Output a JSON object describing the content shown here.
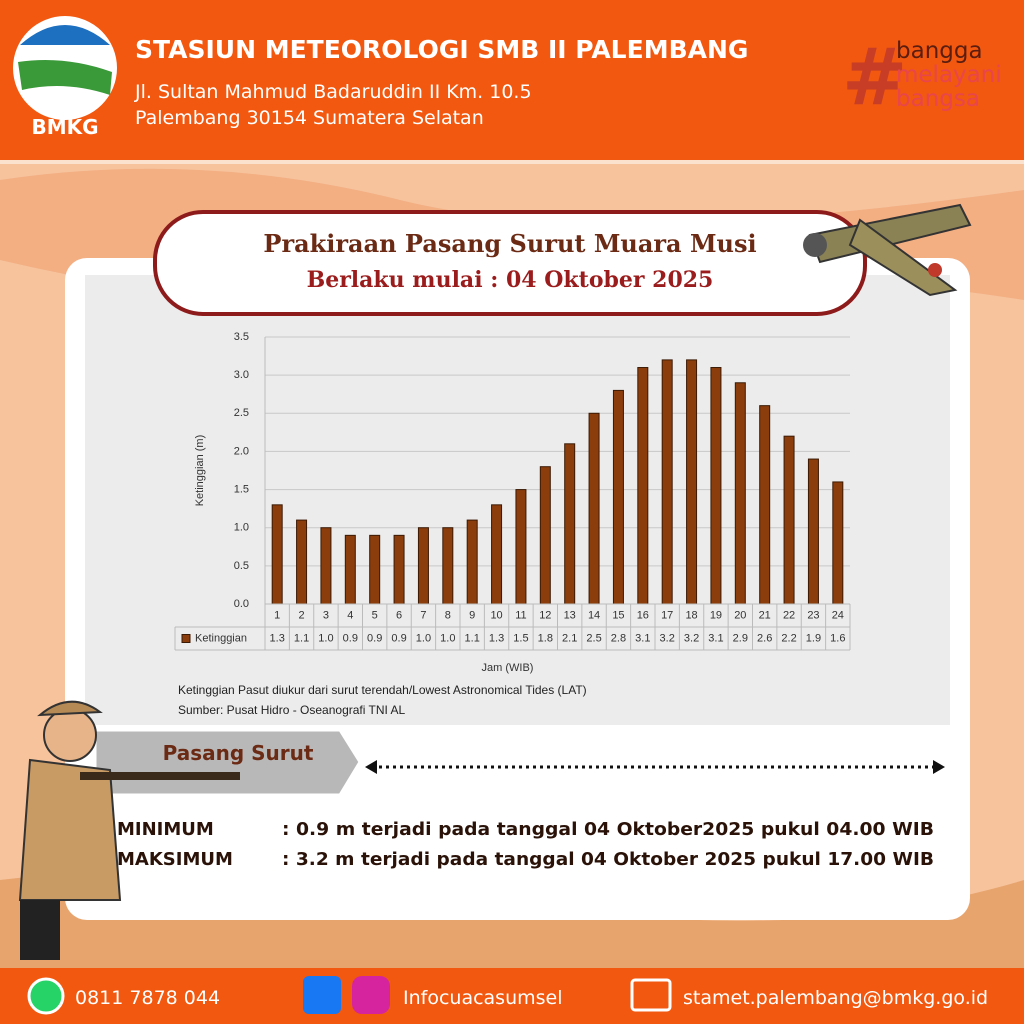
{
  "header": {
    "logo_text": "BMKG",
    "title": "STASIUN METEOROLOGI SMB II PALEMBANG",
    "address_line1": "Jl. Sultan Mahmud Badaruddin II Km. 10.5",
    "address_line2": "Palembang 30154 Sumatera Selatan",
    "tagline_symbol": "#",
    "tagline": [
      "bangga",
      "melayani",
      "bangsa"
    ]
  },
  "banner": {
    "title": "Prakiraan Pasang Surut Muara Musi",
    "subtitle": "Berlaku mulai : 04 Oktober 2025"
  },
  "chart_data": {
    "type": "bar",
    "categories": [
      "1",
      "2",
      "3",
      "4",
      "5",
      "6",
      "7",
      "8",
      "9",
      "10",
      "11",
      "12",
      "13",
      "14",
      "15",
      "16",
      "17",
      "18",
      "19",
      "20",
      "21",
      "22",
      "23",
      "24"
    ],
    "series": [
      {
        "name": "Ketinggian",
        "color": "#8b3d0c",
        "values": [
          1.3,
          1.1,
          1.0,
          0.9,
          0.9,
          0.9,
          1.0,
          1.0,
          1.1,
          1.3,
          1.5,
          1.8,
          2.1,
          2.5,
          2.8,
          3.1,
          3.2,
          3.2,
          3.1,
          2.9,
          2.6,
          2.2,
          1.9,
          1.6
        ],
        "value_labels": [
          "1.3",
          "1.1",
          "1.0",
          "0.9",
          "0.9",
          "0.9",
          "1.0",
          "1.0",
          "1.1",
          "1.3",
          "1.5",
          "1.8",
          "2.1",
          "2.5",
          "2.8",
          "3.1",
          "3.2",
          "3.2",
          "3.1",
          "2.9",
          "2.6",
          "2.2",
          "1.9",
          "1.6"
        ]
      }
    ],
    "ylim": [
      0,
      3.5
    ],
    "yticks": [
      {
        "value": 0,
        "label": "0.0"
      },
      {
        "value": 0.5,
        "label": "0.5"
      },
      {
        "value": 1,
        "label": "1.0"
      },
      {
        "value": 1.5,
        "label": "1.5"
      },
      {
        "value": 2,
        "label": "2.0"
      },
      {
        "value": 2.5,
        "label": "2.5"
      },
      {
        "value": 3,
        "label": "3.0"
      },
      {
        "value": 3.5,
        "label": "3.5"
      }
    ],
    "y_label": "Ketinggian (m)",
    "x_label": "Jam (WIB)",
    "grid": true,
    "data_table": true
  },
  "notes": [
    "Ketinggian Pasut diukur dari surut terendah/Lowest Astronomical Tides (LAT)",
    "Sumber: Pusat Hidro - Oseanografi TNI AL"
  ],
  "summary": {
    "label": "Pasang Surut",
    "rows": [
      {
        "label": "MINIMUM",
        "text": ": 0.9 m terjadi pada tanggal 04 Oktober2025 pukul 04.00 WIB"
      },
      {
        "label": "MAKSIMUM",
        "text": ": 3.2 m terjadi pada tanggal 04 Oktober 2025 pukul 17.00 WIB"
      }
    ]
  },
  "footer": {
    "phone": "0811 7878 044",
    "social": "Infocuacasumsel",
    "email": "stamet.palembang@bmkg.go.id"
  }
}
